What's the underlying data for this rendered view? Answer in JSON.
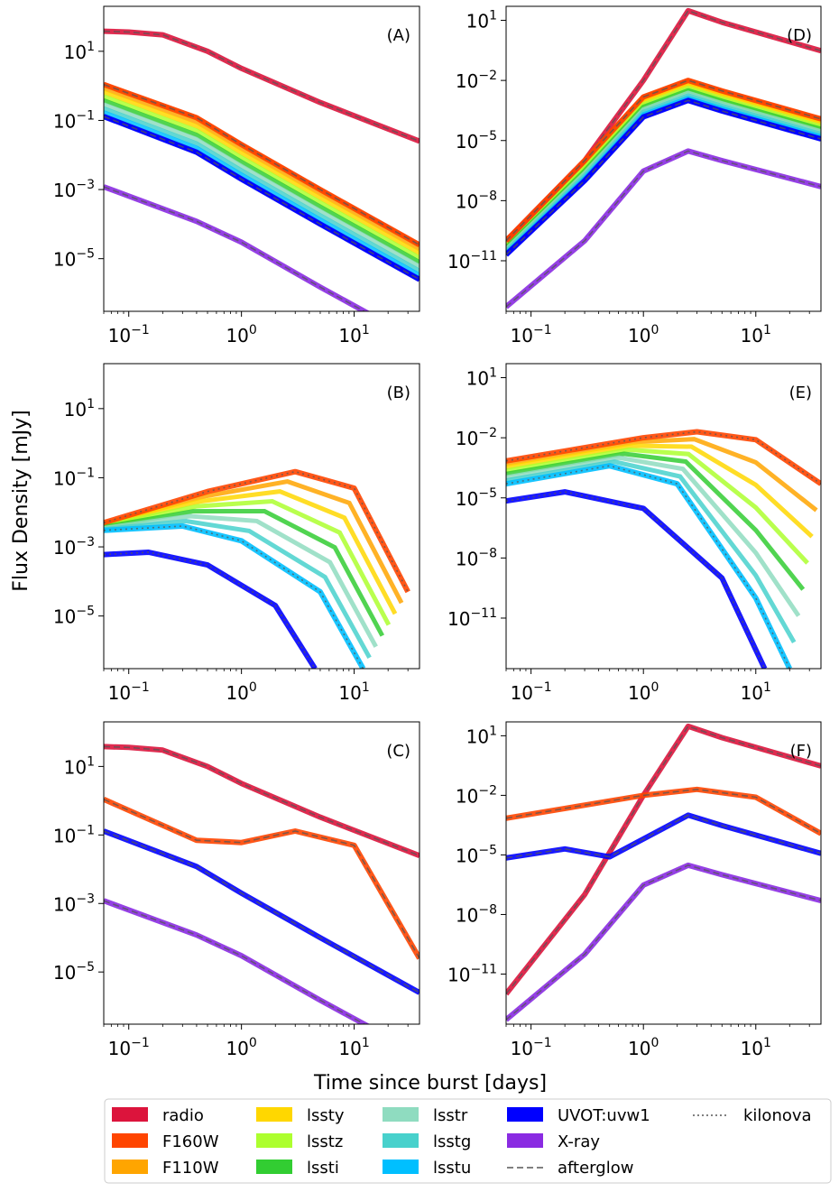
{
  "figure": {
    "ylabel": "Flux Density [mJy]",
    "xlabel": "Time since burst [days]"
  },
  "legend": {
    "items": [
      {
        "label": "radio",
        "color": "#dc143c",
        "kind": "patch"
      },
      {
        "label": "F160W",
        "color": "#ff4500",
        "kind": "patch"
      },
      {
        "label": "F110W",
        "color": "#ffa500",
        "kind": "patch"
      },
      {
        "label": "lssty",
        "color": "#ffd700",
        "kind": "patch"
      },
      {
        "label": "lsstz",
        "color": "#adff2f",
        "kind": "patch"
      },
      {
        "label": "lssti",
        "color": "#32cd32",
        "kind": "patch"
      },
      {
        "label": "lsstr",
        "color": "#8fdcc0",
        "kind": "patch"
      },
      {
        "label": "lsstg",
        "color": "#48d1cc",
        "kind": "patch"
      },
      {
        "label": "lsstu",
        "color": "#00bfff",
        "kind": "patch"
      },
      {
        "label": "UVOT:uvw1",
        "color": "#0000ff",
        "kind": "patch"
      },
      {
        "label": "X-ray",
        "color": "#8a2be2",
        "kind": "patch"
      },
      {
        "label": "afterglow",
        "color": "#808080",
        "kind": "dashed"
      },
      {
        "label": "kilonova",
        "color": "#808080",
        "kind": "dotted"
      }
    ]
  },
  "chart_data": [
    {
      "panel": "(A)",
      "type": "line",
      "x_scale": "log",
      "y_scale": "log",
      "xlim": [
        0.06,
        38
      ],
      "ylim": [
        3e-07,
        200
      ],
      "x_ticks": [
        "10^-1",
        "10^0",
        "10^1"
      ],
      "y_ticks": [
        "10^1",
        "10^-1",
        "10^-3",
        "10^-5"
      ],
      "model": "afterglow",
      "series": [
        {
          "name": "radio",
          "points": [
            [
              0.06,
              38
            ],
            [
              0.1,
              36
            ],
            [
              0.2,
              30
            ],
            [
              0.5,
              10
            ],
            [
              1,
              3.2
            ],
            [
              5,
              0.33
            ],
            [
              38,
              0.025
            ]
          ]
        },
        {
          "name": "F160W",
          "points": [
            [
              0.06,
              1.1
            ],
            [
              0.4,
              0.12
            ],
            [
              1,
              0.02
            ],
            [
              5,
              0.001
            ],
            [
              38,
              2.5e-05
            ]
          ]
        },
        {
          "name": "UVOT:uvw1",
          "points": [
            [
              0.06,
              0.13
            ],
            [
              0.4,
              0.012
            ],
            [
              1,
              0.002
            ],
            [
              5,
              0.0001
            ],
            [
              38,
              2.5e-06
            ]
          ]
        },
        {
          "name": "X-ray",
          "points": [
            [
              0.06,
              0.0012
            ],
            [
              0.4,
              0.00012
            ],
            [
              1,
              3e-05
            ],
            [
              5,
              1.5e-06
            ],
            [
              38,
              4e-08
            ]
          ]
        }
      ]
    },
    {
      "panel": "(D)",
      "type": "line",
      "x_scale": "log",
      "y_scale": "log",
      "xlim": [
        0.06,
        38
      ],
      "ylim": [
        3e-14,
        50
      ],
      "x_ticks": [
        "10^-1",
        "10^0",
        "10^1"
      ],
      "y_ticks": [
        "10^1",
        "10^-2",
        "10^-5",
        "10^-8",
        "10^-11"
      ],
      "model": "afterglow",
      "series": [
        {
          "name": "radio",
          "points": [
            [
              0.06,
              1e-10
            ],
            [
              0.3,
              1e-06
            ],
            [
              1,
              0.01
            ],
            [
              2.5,
              30
            ],
            [
              5,
              8
            ],
            [
              38,
              0.3
            ]
          ]
        },
        {
          "name": "F160W",
          "points": [
            [
              0.06,
              1e-10
            ],
            [
              0.3,
              1e-06
            ],
            [
              1,
              0.0015
            ],
            [
              2.5,
              0.01
            ],
            [
              5,
              0.003
            ],
            [
              38,
              0.00012
            ]
          ]
        },
        {
          "name": "UVOT:uvw1",
          "points": [
            [
              0.06,
              2e-11
            ],
            [
              0.3,
              1e-07
            ],
            [
              1,
              0.00015
            ],
            [
              2.5,
              0.001
            ],
            [
              5,
              0.0003
            ],
            [
              38,
              1.2e-05
            ]
          ]
        },
        {
          "name": "X-ray",
          "points": [
            [
              0.06,
              5e-14
            ],
            [
              0.3,
              1e-10
            ],
            [
              1,
              3e-07
            ],
            [
              2.5,
              3e-06
            ],
            [
              5,
              1e-06
            ],
            [
              38,
              5e-08
            ]
          ]
        }
      ]
    },
    {
      "panel": "(B)",
      "type": "line",
      "x_scale": "log",
      "y_scale": "log",
      "xlim": [
        0.06,
        38
      ],
      "ylim": [
        3e-07,
        200
      ],
      "x_ticks": [
        "10^-1",
        "10^0",
        "10^1"
      ],
      "y_ticks": [
        "10^1",
        "10^-1",
        "10^-3",
        "10^-5"
      ],
      "model": "kilonova",
      "series": [
        {
          "name": "F160W",
          "points": [
            [
              0.06,
              0.005
            ],
            [
              0.5,
              0.04
            ],
            [
              3,
              0.15
            ],
            [
              10,
              0.05
            ],
            [
              30,
              5e-05
            ]
          ]
        },
        {
          "name": "lsstu",
          "points": [
            [
              0.06,
              0.003
            ],
            [
              0.3,
              0.004
            ],
            [
              1,
              0.0015
            ],
            [
              5,
              5e-05
            ],
            [
              12,
              3e-07
            ]
          ]
        },
        {
          "name": "UVOT:uvw1",
          "points": [
            [
              0.06,
              0.0006
            ],
            [
              0.15,
              0.0007
            ],
            [
              0.5,
              0.0003
            ],
            [
              2,
              2e-05
            ],
            [
              4.5,
              3e-07
            ]
          ]
        }
      ]
    },
    {
      "panel": "(E)",
      "type": "line",
      "x_scale": "log",
      "y_scale": "log",
      "xlim": [
        0.06,
        38
      ],
      "ylim": [
        3e-14,
        50
      ],
      "x_ticks": [
        "10^-1",
        "10^0",
        "10^1"
      ],
      "y_ticks": [
        "10^1",
        "10^-2",
        "10^-5",
        "10^-8",
        "10^-11"
      ],
      "model": "kilonova",
      "series": [
        {
          "name": "F160W",
          "points": [
            [
              0.06,
              0.0007
            ],
            [
              1,
              0.01
            ],
            [
              3,
              0.02
            ],
            [
              10,
              0.008
            ],
            [
              38,
              5e-05
            ]
          ]
        },
        {
          "name": "lsstu",
          "points": [
            [
              0.06,
              5e-05
            ],
            [
              0.5,
              0.0004
            ],
            [
              2,
              5e-05
            ],
            [
              10,
              1e-10
            ],
            [
              20,
              3e-14
            ]
          ]
        },
        {
          "name": "UVOT:uvw1",
          "points": [
            [
              0.06,
              7e-06
            ],
            [
              0.2,
              2e-05
            ],
            [
              1,
              3e-06
            ],
            [
              5,
              1e-09
            ],
            [
              12,
              3e-14
            ]
          ]
        }
      ]
    },
    {
      "panel": "(C)",
      "type": "line",
      "x_scale": "log",
      "y_scale": "log",
      "xlim": [
        0.06,
        38
      ],
      "ylim": [
        3e-07,
        200
      ],
      "x_ticks": [
        "10^-1",
        "10^0",
        "10^1"
      ],
      "y_ticks": [
        "10^1",
        "10^-1",
        "10^-3",
        "10^-5"
      ],
      "model": "afterglow+kilonova",
      "series": [
        {
          "name": "radio",
          "points": [
            [
              0.06,
              38
            ],
            [
              0.1,
              36
            ],
            [
              0.2,
              30
            ],
            [
              0.5,
              10
            ],
            [
              1,
              3.2
            ],
            [
              5,
              0.33
            ],
            [
              38,
              0.025
            ]
          ]
        },
        {
          "name": "F160W",
          "points": [
            [
              0.06,
              1.1
            ],
            [
              0.4,
              0.07
            ],
            [
              1,
              0.06
            ],
            [
              3,
              0.13
            ],
            [
              10,
              0.05
            ],
            [
              38,
              2.5e-05
            ]
          ]
        },
        {
          "name": "UVOT:uvw1",
          "points": [
            [
              0.06,
              0.13
            ],
            [
              0.4,
              0.012
            ],
            [
              1,
              0.002
            ],
            [
              5,
              0.0001
            ],
            [
              38,
              2.5e-06
            ]
          ]
        },
        {
          "name": "X-ray",
          "points": [
            [
              0.06,
              0.0012
            ],
            [
              0.4,
              0.00012
            ],
            [
              1,
              3e-05
            ],
            [
              5,
              1.5e-06
            ],
            [
              38,
              4e-08
            ]
          ]
        }
      ]
    },
    {
      "panel": "(F)",
      "type": "line",
      "x_scale": "log",
      "y_scale": "log",
      "xlim": [
        0.06,
        38
      ],
      "ylim": [
        3e-14,
        50
      ],
      "x_ticks": [
        "10^-1",
        "10^0",
        "10^1"
      ],
      "y_ticks": [
        "10^1",
        "10^-2",
        "10^-5",
        "10^-8",
        "10^-11"
      ],
      "model": "afterglow+kilonova",
      "series": [
        {
          "name": "radio",
          "points": [
            [
              0.06,
              1e-12
            ],
            [
              0.3,
              1e-07
            ],
            [
              1,
              0.01
            ],
            [
              2.5,
              30
            ],
            [
              5,
              8
            ],
            [
              38,
              0.3
            ]
          ]
        },
        {
          "name": "F160W",
          "points": [
            [
              0.06,
              0.0007
            ],
            [
              1,
              0.01
            ],
            [
              3,
              0.02
            ],
            [
              10,
              0.008
            ],
            [
              38,
              0.00012
            ]
          ]
        },
        {
          "name": "UVOT:uvw1",
          "points": [
            [
              0.06,
              7e-06
            ],
            [
              0.2,
              2e-05
            ],
            [
              0.5,
              8e-06
            ],
            [
              2.5,
              0.001
            ],
            [
              5,
              0.0003
            ],
            [
              38,
              1.2e-05
            ]
          ]
        },
        {
          "name": "X-ray",
          "points": [
            [
              0.06,
              5e-14
            ],
            [
              0.3,
              1e-10
            ],
            [
              1,
              3e-07
            ],
            [
              2.5,
              3e-06
            ],
            [
              5,
              1e-06
            ],
            [
              38,
              5e-08
            ]
          ]
        }
      ]
    }
  ]
}
